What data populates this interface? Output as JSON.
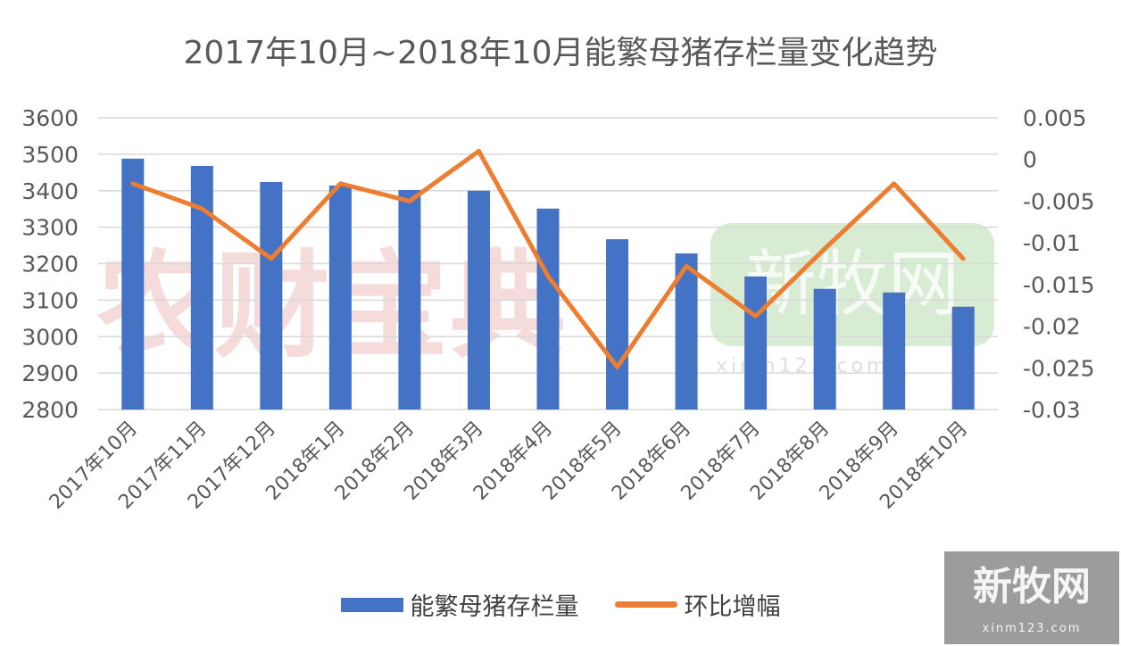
{
  "chart_data": {
    "type": "bar+line",
    "title": "2017年10月~2018年10月能繁母猪存栏量变化趋势",
    "categories": [
      "2017年10月",
      "2017年11月",
      "2017年12月",
      "2018年1月",
      "2018年2月",
      "2018年3月",
      "2018年4月",
      "2018年5月",
      "2018年6月",
      "2018年7月",
      "2018年8月",
      "2018年9月",
      "2018年10月"
    ],
    "series": [
      {
        "name": "能繁母猪存栏量",
        "type": "bar",
        "axis": "left",
        "color": "#4472c4",
        "values": [
          3488,
          3468,
          3424,
          3414,
          3402,
          3400,
          3351,
          3267,
          3228,
          3165,
          3131,
          3121,
          3082
        ]
      },
      {
        "name": "环比增幅",
        "type": "line",
        "axis": "right",
        "color": "#ed7d31",
        "values": [
          -0.0029,
          -0.0059,
          -0.0119,
          -0.0029,
          -0.005,
          0.001,
          -0.014,
          -0.0249,
          -0.0128,
          -0.0188,
          -0.0107,
          -0.0029,
          -0.0119
        ]
      }
    ],
    "left_axis": {
      "ylim": [
        2800,
        3600
      ],
      "ticks": [
        "3600",
        "3500",
        "3400",
        "3300",
        "3200",
        "3100",
        "3000",
        "2900",
        "2800"
      ]
    },
    "right_axis": {
      "ylim": [
        -0.03,
        0.005
      ],
      "ticks": [
        "0.005",
        "0",
        "-0.005",
        "-0.01",
        "-0.015",
        "-0.02",
        "-0.025",
        "-0.03"
      ]
    },
    "grid": true,
    "legend": "bottom"
  },
  "watermarks": {
    "a": "农财宝典",
    "b": "新牧网",
    "c": "xinm123.com"
  }
}
